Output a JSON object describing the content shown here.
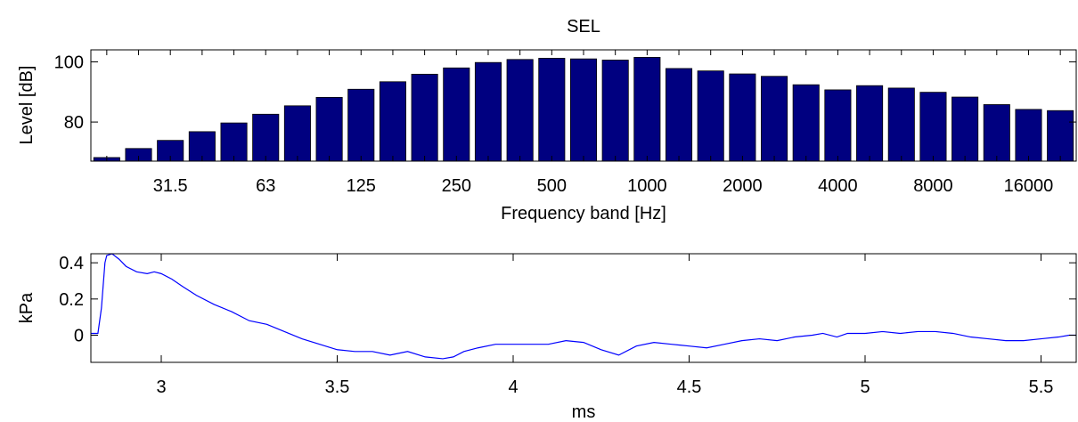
{
  "chart_data": [
    {
      "type": "bar",
      "title": "SEL",
      "xlabel": "Frequency band [Hz]",
      "ylabel": "Level [dB]",
      "ylim": [
        67,
        104
      ],
      "yticks": [
        80,
        100
      ],
      "xtick_labels": [
        "31.5",
        "63",
        "125",
        "250",
        "500",
        "1000",
        "2000",
        "4000",
        "8000",
        "16000"
      ],
      "bar_color": "#000080",
      "grid": false,
      "values": [
        68.2,
        71.2,
        73.9,
        76.8,
        79.7,
        82.6,
        85.4,
        88.2,
        90.9,
        93.4,
        95.9,
        98.0,
        99.8,
        100.8,
        101.2,
        101.0,
        100.6,
        101.5,
        97.8,
        97.0,
        96.0,
        95.2,
        92.4,
        90.7,
        92.1,
        91.3,
        89.9,
        88.3,
        85.8,
        84.2,
        83.8
      ]
    },
    {
      "type": "line",
      "xlabel": "ms",
      "ylabel": "kPa",
      "xlim": [
        2.8,
        5.6
      ],
      "ylim": [
        -0.15,
        0.45
      ],
      "xticks": [
        3,
        3.5,
        4,
        4.5,
        5,
        5.5
      ],
      "yticks": [
        0,
        0.2,
        0.4
      ],
      "line_color": "#0000ff",
      "grid": false,
      "x": [
        2.8,
        2.82,
        2.83,
        2.84,
        2.845,
        2.86,
        2.88,
        2.9,
        2.93,
        2.96,
        2.98,
        3.0,
        3.03,
        3.06,
        3.1,
        3.15,
        3.2,
        3.25,
        3.3,
        3.35,
        3.4,
        3.45,
        3.5,
        3.55,
        3.6,
        3.65,
        3.7,
        3.75,
        3.8,
        3.83,
        3.86,
        3.9,
        3.95,
        4.0,
        4.05,
        4.1,
        4.15,
        4.2,
        4.25,
        4.3,
        4.35,
        4.4,
        4.45,
        4.5,
        4.55,
        4.6,
        4.65,
        4.7,
        4.75,
        4.8,
        4.85,
        4.88,
        4.92,
        4.95,
        5.0,
        5.05,
        5.1,
        5.15,
        5.2,
        5.25,
        5.3,
        5.35,
        5.4,
        5.45,
        5.5,
        5.55,
        5.58,
        5.6
      ],
      "y": [
        0.01,
        0.01,
        0.15,
        0.4,
        0.44,
        0.45,
        0.42,
        0.38,
        0.35,
        0.34,
        0.35,
        0.34,
        0.31,
        0.27,
        0.22,
        0.17,
        0.13,
        0.08,
        0.06,
        0.02,
        -0.02,
        -0.05,
        -0.08,
        -0.09,
        -0.09,
        -0.11,
        -0.09,
        -0.12,
        -0.13,
        -0.12,
        -0.09,
        -0.07,
        -0.05,
        -0.05,
        -0.05,
        -0.05,
        -0.03,
        -0.04,
        -0.08,
        -0.11,
        -0.06,
        -0.04,
        -0.05,
        -0.06,
        -0.07,
        -0.05,
        -0.03,
        -0.02,
        -0.03,
        -0.01,
        0.0,
        0.01,
        -0.01,
        0.01,
        0.01,
        0.02,
        0.01,
        0.02,
        0.02,
        0.01,
        -0.01,
        -0.02,
        -0.03,
        -0.03,
        -0.02,
        -0.01,
        0.0,
        0.0
      ]
    }
  ]
}
